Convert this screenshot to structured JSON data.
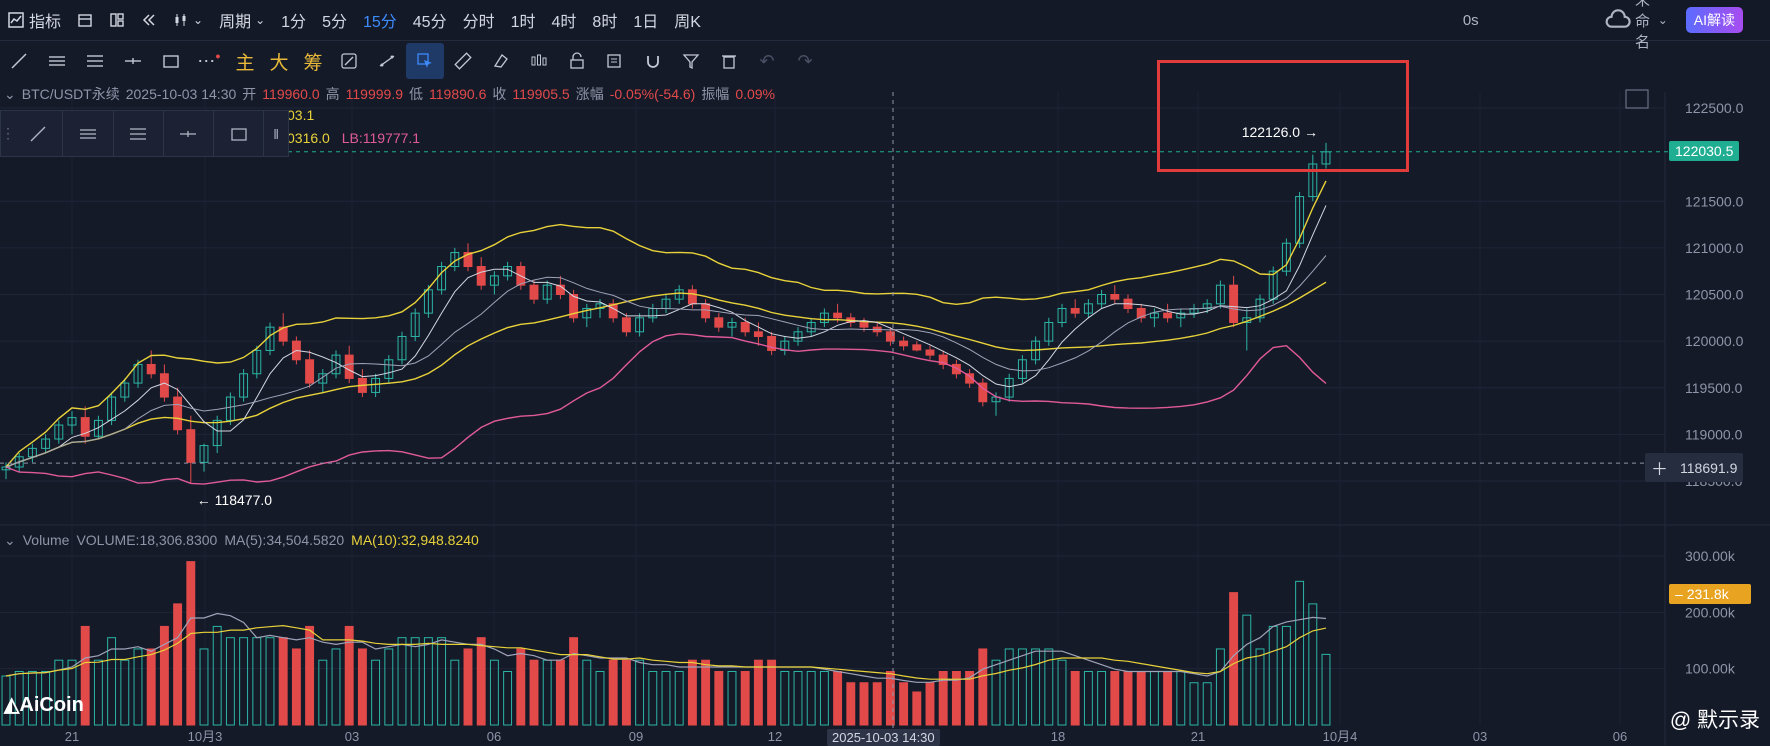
{
  "topbar": {
    "indicator_label": "指标",
    "period_label": "周期",
    "periods": [
      "1分",
      "5分",
      "15分",
      "45分",
      "分时",
      "1时",
      "4时",
      "8时",
      "1日",
      "周K"
    ],
    "active_period": "15分",
    "countdown": "0s",
    "layout_name": "未命名",
    "ai_button": "AI解读"
  },
  "toolbar2": {
    "main_label": "主",
    "big_label": "大",
    "chip_label": "筹"
  },
  "info": {
    "symbol": "BTC/USDT永续",
    "datetime": "2025-10-03 14:30",
    "open_label": "开",
    "open": "119960.0",
    "high_label": "高",
    "high": "119999.9",
    "low_label": "低",
    "low": "119890.6",
    "close_label": "收",
    "close": "119905.5",
    "change_label": "涨幅",
    "change": "-0.05%(-54.6)",
    "amplitude_label": "振幅",
    "amplitude": "0.09%",
    "sub1": "03.1",
    "sub2_a": "0316.0",
    "sub2_b": "LB:119777.1"
  },
  "volume_info": {
    "title": "Volume",
    "volume": "VOLUME:18,306.8300",
    "ma5": "MA(5):34,504.5820",
    "ma10": "MA(10):32,948.8240"
  },
  "annotations": {
    "high_marker": "122126.0 →",
    "low_marker": "← 118477.0",
    "current_price": "122030.5",
    "crosshair_price": "118691.9",
    "volume_tag": "231.8k",
    "crosshair_time": "2025-10-03 14:30"
  },
  "axes": {
    "price_ticks": [
      "122500.0",
      "121500.0",
      "121000.0",
      "120500.0",
      "120000.0",
      "119500.0",
      "119000.0",
      "118500.0"
    ],
    "volume_ticks": [
      "300.00k",
      "200.00k",
      "100.00k"
    ],
    "time_ticks": [
      "21",
      "10月3",
      "03",
      "06",
      "09",
      "12",
      "18",
      "21",
      "10月4",
      "03",
      "06"
    ]
  },
  "logo": "AiCoin",
  "watermark": "@ 默示录",
  "colors": {
    "up": "#2bb5a5",
    "down": "#e24a4a",
    "boll_upper": "#e8d23a",
    "boll_lower": "#e05a9a",
    "ma_gray": "#a0a3b8",
    "current_price_bg": "#1fae92",
    "volume_tag_bg": "#e8a321"
  },
  "chart_data": {
    "type": "candlestick",
    "series": [
      {
        "name": "BTC/USDT永续",
        "values": [
          [
            118620,
            118700,
            118520,
            118650
          ],
          [
            118650,
            118800,
            118600,
            118760
          ],
          [
            118760,
            118900,
            118700,
            118850
          ],
          [
            118850,
            119000,
            118800,
            118950
          ],
          [
            118950,
            119150,
            118900,
            119100
          ],
          [
            119100,
            119250,
            119000,
            119180
          ],
          [
            119180,
            119300,
            118900,
            118980
          ],
          [
            118980,
            119200,
            118950,
            119150
          ],
          [
            119150,
            119450,
            119100,
            119400
          ],
          [
            119400,
            119600,
            119350,
            119550
          ],
          [
            119550,
            119800,
            119500,
            119750
          ],
          [
            119750,
            119900,
            119600,
            119650
          ],
          [
            119650,
            119750,
            119350,
            119400
          ],
          [
            119400,
            119500,
            119000,
            119050
          ],
          [
            119050,
            119200,
            118477,
            118700
          ],
          [
            118700,
            118900,
            118600,
            118880
          ],
          [
            118880,
            119200,
            118800,
            119150
          ],
          [
            119150,
            119450,
            119100,
            119400
          ],
          [
            119400,
            119700,
            119350,
            119650
          ],
          [
            119650,
            119950,
            119600,
            119900
          ],
          [
            119900,
            120200,
            119850,
            120150
          ],
          [
            120150,
            120300,
            119950,
            120000
          ],
          [
            120000,
            120050,
            119750,
            119800
          ],
          [
            119800,
            119900,
            119500,
            119550
          ],
          [
            119550,
            119700,
            119450,
            119650
          ],
          [
            119650,
            119900,
            119600,
            119850
          ],
          [
            119850,
            119950,
            119550,
            119600
          ],
          [
            119600,
            119700,
            119400,
            119450
          ],
          [
            119450,
            119650,
            119400,
            119600
          ],
          [
            119600,
            119850,
            119550,
            119800
          ],
          [
            119800,
            120100,
            119750,
            120050
          ],
          [
            120050,
            120350,
            120000,
            120300
          ],
          [
            120300,
            120600,
            120250,
            120550
          ],
          [
            120550,
            120850,
            120500,
            120800
          ],
          [
            120800,
            121000,
            120750,
            120950
          ],
          [
            120950,
            121050,
            120750,
            120800
          ],
          [
            120800,
            120900,
            120550,
            120600
          ],
          [
            120600,
            120750,
            120500,
            120700
          ],
          [
            120700,
            120850,
            120650,
            120800
          ],
          [
            120800,
            120850,
            120550,
            120600
          ],
          [
            120600,
            120650,
            120400,
            120450
          ],
          [
            120450,
            120650,
            120400,
            120600
          ],
          [
            120600,
            120700,
            120450,
            120500
          ],
          [
            120500,
            120550,
            120200,
            120250
          ],
          [
            120250,
            120400,
            120150,
            120350
          ],
          [
            120350,
            120450,
            120250,
            120400
          ],
          [
            120400,
            120450,
            120200,
            120250
          ],
          [
            120250,
            120300,
            120050,
            120100
          ],
          [
            120100,
            120300,
            120050,
            120250
          ],
          [
            120250,
            120400,
            120200,
            120350
          ],
          [
            120350,
            120500,
            120300,
            120450
          ],
          [
            120450,
            120600,
            120400,
            120550
          ],
          [
            120550,
            120600,
            120350,
            120400
          ],
          [
            120400,
            120450,
            120200,
            120250
          ],
          [
            120250,
            120300,
            120100,
            120150
          ],
          [
            120150,
            120250,
            120050,
            120200
          ],
          [
            120200,
            120250,
            120050,
            120100
          ],
          [
            120100,
            120200,
            119950,
            120050
          ],
          [
            120050,
            120100,
            119850,
            119900
          ],
          [
            119900,
            120050,
            119850,
            120000
          ],
          [
            120000,
            120150,
            119950,
            120100
          ],
          [
            120100,
            120250,
            120050,
            120200
          ],
          [
            120200,
            120350,
            120150,
            120300
          ],
          [
            120300,
            120400,
            120200,
            120250
          ],
          [
            120250,
            120300,
            120150,
            120200
          ],
          [
            120200,
            120250,
            120100,
            120150
          ],
          [
            120150,
            120200,
            120050,
            120100
          ],
          [
            120100,
            120150,
            119950,
            120000
          ],
          [
            120000,
            120050,
            119900,
            119950
          ],
          [
            119960,
            119999,
            119890,
            119905
          ],
          [
            119905,
            119950,
            119800,
            119850
          ],
          [
            119850,
            119900,
            119700,
            119750
          ],
          [
            119750,
            119800,
            119600,
            119650
          ],
          [
            119650,
            119700,
            119500,
            119550
          ],
          [
            119550,
            119600,
            119300,
            119350
          ],
          [
            119350,
            119450,
            119200,
            119400
          ],
          [
            119400,
            119650,
            119350,
            119600
          ],
          [
            119600,
            119850,
            119550,
            119800
          ],
          [
            119800,
            120050,
            119750,
            120000
          ],
          [
            120000,
            120250,
            119950,
            120200
          ],
          [
            120200,
            120400,
            120150,
            120350
          ],
          [
            120350,
            120450,
            120250,
            120300
          ],
          [
            120300,
            120450,
            120250,
            120400
          ],
          [
            120400,
            120550,
            120350,
            120500
          ],
          [
            120500,
            120600,
            120400,
            120450
          ],
          [
            120450,
            120500,
            120300,
            120350
          ],
          [
            120350,
            120400,
            120200,
            120250
          ],
          [
            120250,
            120350,
            120150,
            120300
          ],
          [
            120300,
            120400,
            120200,
            120250
          ],
          [
            120250,
            120350,
            120150,
            120300
          ],
          [
            120300,
            120400,
            120250,
            120350
          ],
          [
            120350,
            120450,
            120300,
            120400
          ],
          [
            120400,
            120650,
            120350,
            120600
          ],
          [
            120600,
            120700,
            120150,
            120200
          ],
          [
            120200,
            120350,
            119900,
            120250
          ],
          [
            120250,
            120500,
            120200,
            120450
          ],
          [
            120450,
            120800,
            120400,
            120750
          ],
          [
            120750,
            121100,
            120700,
            121050
          ],
          [
            121050,
            121600,
            121000,
            121550
          ],
          [
            121550,
            122000,
            121500,
            121900
          ],
          [
            121900,
            122126,
            121850,
            122030
          ]
        ]
      }
    ],
    "ylim": [
      118300,
      122700
    ]
  }
}
